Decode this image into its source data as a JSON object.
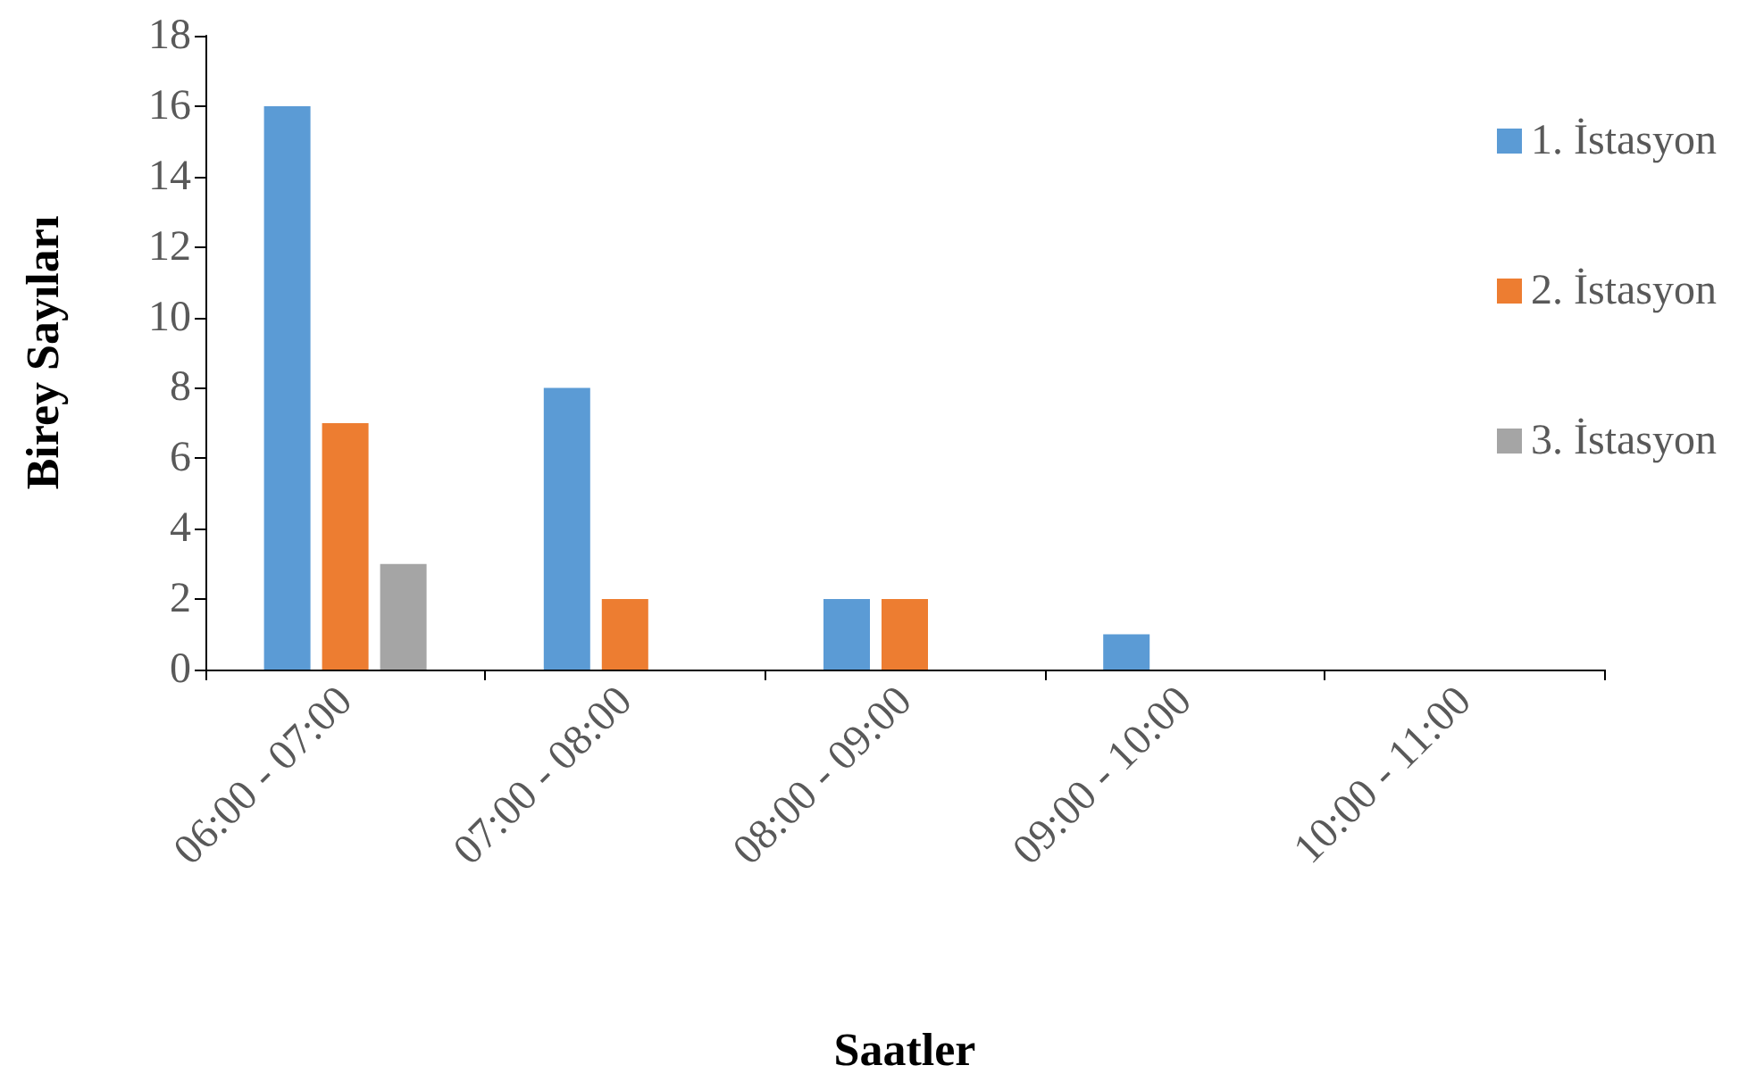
{
  "chart_data": {
    "type": "bar",
    "xlabel": "Saatler",
    "ylabel": "Birey Sayıları",
    "categories": [
      "06:00 - 07:00",
      "07:00 - 08:00",
      "08:00 - 09:00",
      "09:00 - 10:00",
      "10:00 - 11:00"
    ],
    "series": [
      {
        "name": "1. İstasyon",
        "color": "#5b9bd5",
        "values": [
          16,
          8,
          2,
          1,
          0
        ]
      },
      {
        "name": "2. İstasyon",
        "color": "#ed7d31",
        "values": [
          7,
          2,
          2,
          0,
          0
        ]
      },
      {
        "name": "3. İstasyon",
        "color": "#a5a5a5",
        "values": [
          3,
          0,
          0,
          0,
          0
        ]
      }
    ],
    "ylim": [
      0,
      18
    ],
    "yticks": [
      0,
      2,
      4,
      6,
      8,
      10,
      12,
      14,
      16,
      18
    ],
    "legend": "right"
  }
}
